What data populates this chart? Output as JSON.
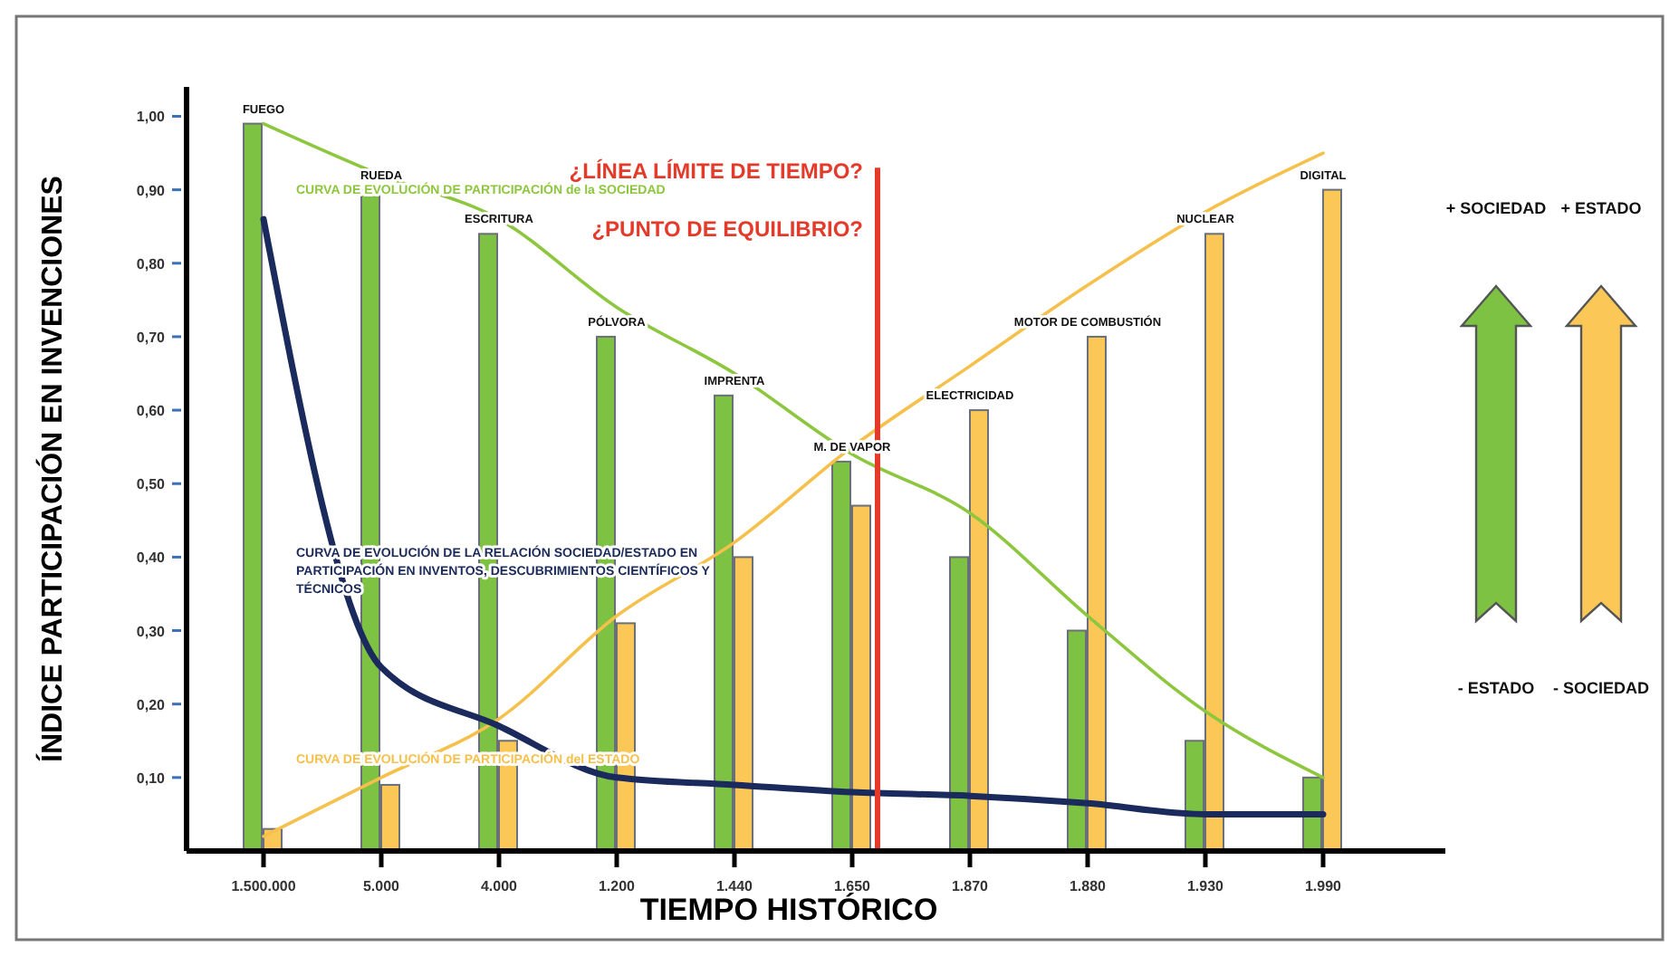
{
  "chart_data": {
    "type": "bar",
    "xlabel": "TIEMPO HISTÓRICO",
    "ylabel": "ÍNDICE PARTICIPACIÓN EN INVENCIONES",
    "categories": [
      "1.500.000",
      "5.000",
      "4.000",
      "1.200",
      "1.440",
      "1.650",
      "1.870",
      "1.880",
      "1.930",
      "1.990"
    ],
    "ylim": [
      0,
      1.04
    ],
    "yticks": [
      {
        "value": 0.1,
        "label": "0,10"
      },
      {
        "value": 0.2,
        "label": "0,20"
      },
      {
        "value": 0.3,
        "label": "0,30"
      },
      {
        "value": 0.4,
        "label": "0,40"
      },
      {
        "value": 0.5,
        "label": "0,50"
      },
      {
        "value": 0.6,
        "label": "0,60"
      },
      {
        "value": 0.7,
        "label": "0,70"
      },
      {
        "value": 0.8,
        "label": "0,80"
      },
      {
        "value": 0.9,
        "label": "0,90"
      },
      {
        "value": 1,
        "label": "1,00"
      }
    ],
    "grid": false,
    "legend": false,
    "series": [
      {
        "type": "bar",
        "color": "#7dc242",
        "values": [
          0.99,
          0.9,
          0.84,
          0.7,
          0.62,
          0.53,
          0.4,
          0.3,
          0.15,
          0.1
        ]
      },
      {
        "type": "bar",
        "color": "#fbc757",
        "values": [
          0.03,
          0.09,
          0.15,
          0.31,
          0.4,
          0.47,
          0.6,
          0.7,
          0.84,
          0.9
        ]
      },
      {
        "type": "line",
        "name": "CURVA DE EVOLUCIÓN DE PARTICIPACIÓN de la SOCIEDAD",
        "color": "#8dc63f",
        "values": [
          0.99,
          0.92,
          0.86,
          0.74,
          0.65,
          0.54,
          0.46,
          0.32,
          0.19,
          0.1
        ]
      },
      {
        "type": "line",
        "name": "CURVA DE EVOLUCIÓN  DE PARTICIPACIÓN del ESTADO",
        "color": "#f6c04c",
        "values": [
          0.02,
          0.1,
          0.18,
          0.32,
          0.42,
          0.55,
          0.66,
          0.77,
          0.87,
          0.95
        ]
      },
      {
        "type": "line",
        "name": "CURVA DE EVOLUCIÓN DE LA RELACIÓN SOCIEDAD/ESTADO EN PARTICIPACIÓN EN INVENTOS, DESCUBRIMIENTOS CIENTÍFICOS Y TÉCNICOS",
        "color": "#1b2a5c",
        "values": [
          0.86,
          0.25,
          0.17,
          0.1,
          0.09,
          0.08,
          0.075,
          0.065,
          0.05,
          0.05
        ]
      }
    ],
    "ref_lines": [
      {
        "axis": "x",
        "value": "1.650",
        "label": "¿LÍNEA LÍMITE DE TIEMPO?\n¿PUNTO DE EQUILIBRIO?",
        "color": "#e53a2a"
      }
    ],
    "annotations": [
      {
        "text": "FUEGO",
        "x": "1.500.000",
        "y": 0.99
      },
      {
        "text": "RUEDA",
        "x": "5.000",
        "y": 0.9
      },
      {
        "text": "ESCRITURA",
        "x": "4.000",
        "y": 0.84
      },
      {
        "text": "PÓLVORA",
        "x": "1.200",
        "y": 0.7
      },
      {
        "text": "IMPRENTA",
        "x": "1.440",
        "y": 0.62
      },
      {
        "text": "M. DE VAPOR",
        "x": "1.650",
        "y": 0.53
      },
      {
        "text": "ELECTRICIDAD",
        "x": "1.870",
        "y": 0.6
      },
      {
        "text": "MOTOR DE COMBUSTIÓN",
        "x": "1.880",
        "y": 0.7
      },
      {
        "text": "NUCLEAR",
        "x": "1.930",
        "y": 0.84
      },
      {
        "text": "DIGITAL",
        "x": "1.990",
        "y": 0.9
      },
      "+ SOCIEDAD",
      "+ ESTADO",
      "- ESTADO",
      "- SOCIEDAD"
    ]
  }
}
